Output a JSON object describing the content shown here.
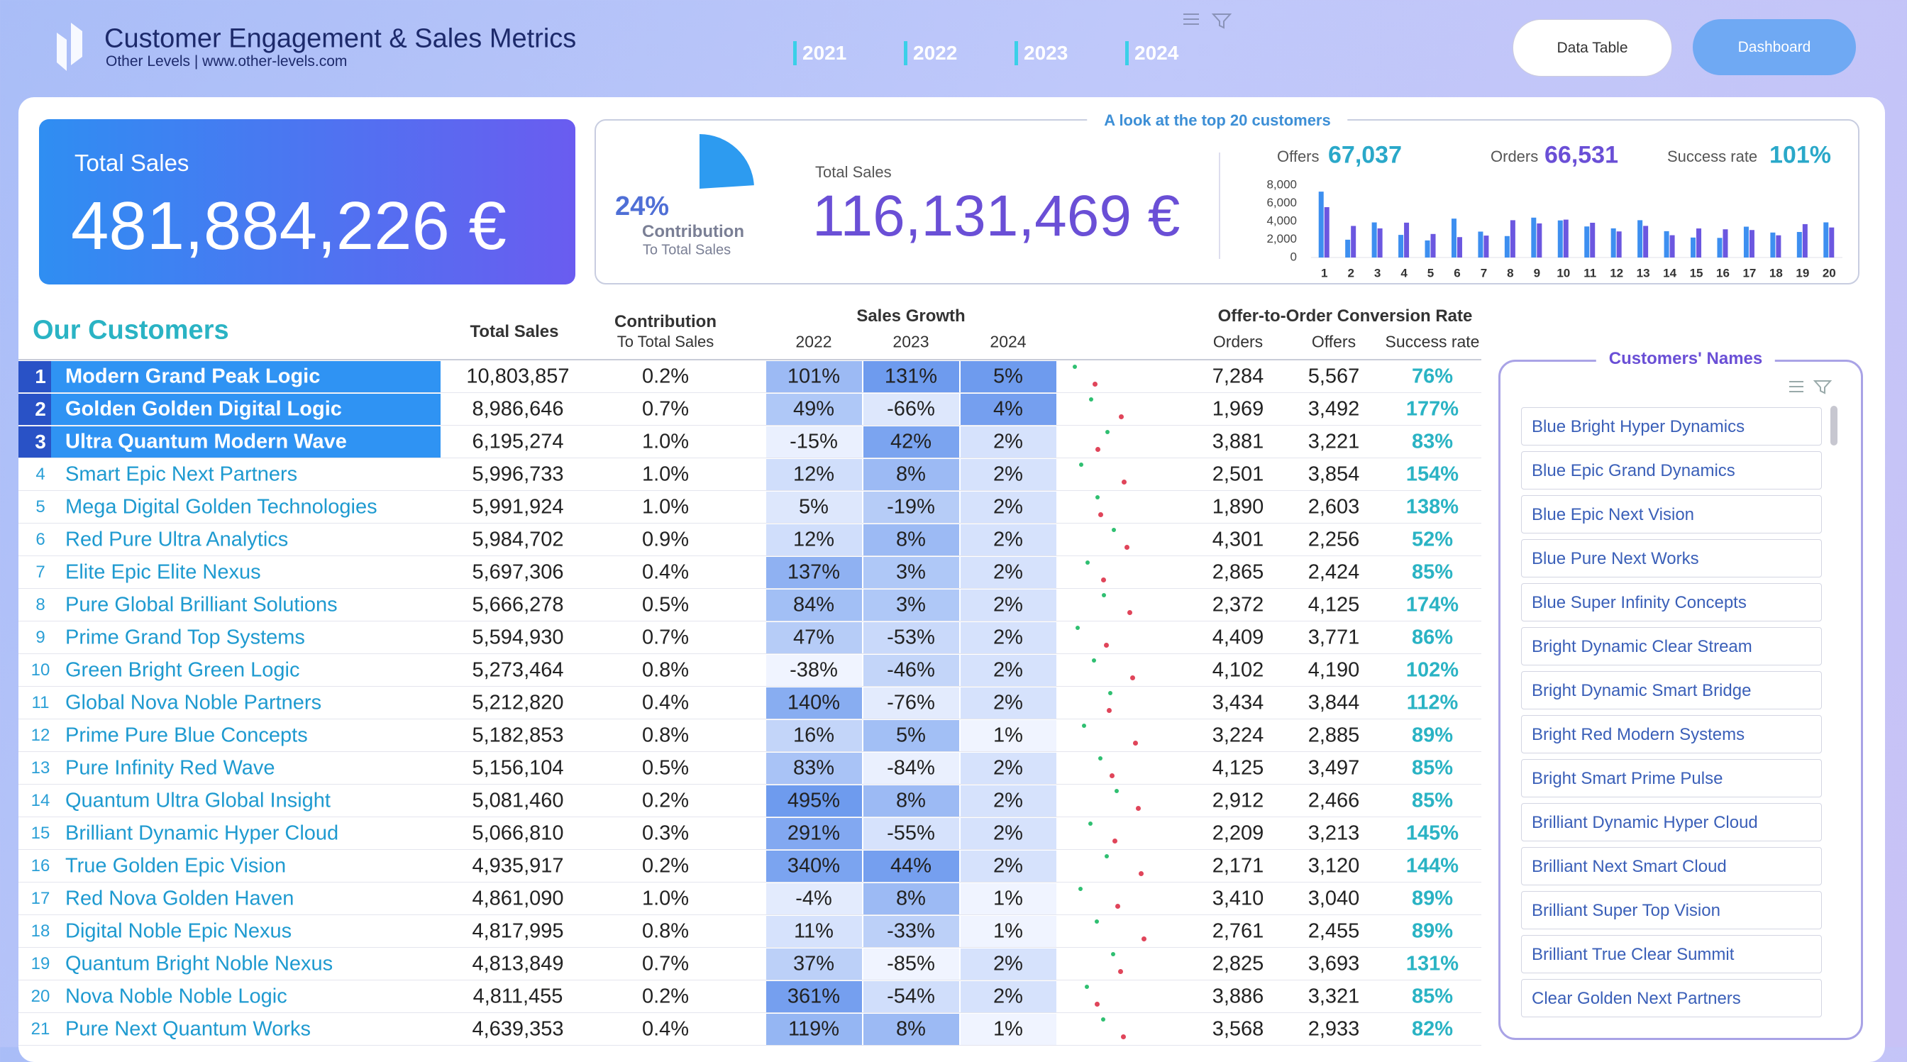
{
  "header": {
    "title": "Customer Engagement & Sales Metrics",
    "subtitle": "Other Levels | www.other-levels.com",
    "years": [
      "2021",
      "2022",
      "2023",
      "2024"
    ],
    "buttons": [
      "Data Table",
      "Dashboard"
    ]
  },
  "total_sales": {
    "label": "Total Sales",
    "value": "481,884,226 €"
  },
  "top20": {
    "heading": "A look at the top 20 customers",
    "contribution_label": "Contribution",
    "contribution_sub": "To Total Sales",
    "total_label": "Total Sales",
    "total_value": "116,131,469 €",
    "offers_label": "Offers",
    "offers": "67,037",
    "orders_label": "Orders",
    "orders": "66,531",
    "success_label": "Success rate",
    "success": "101%"
  },
  "chart_data": [
    {
      "type": "pie",
      "values": [
        24
      ],
      "value_labels": [
        "24%"
      ],
      "color": "#2d9bf0"
    },
    {
      "type": "bar",
      "categories": [
        "1",
        "2",
        "3",
        "4",
        "5",
        "6",
        "7",
        "8",
        "9",
        "10",
        "11",
        "12",
        "13",
        "14",
        "15",
        "16",
        "17",
        "18",
        "19",
        "20"
      ],
      "series": [
        {
          "color": "#3d8ff0",
          "values": [
            7284,
            1969,
            3881,
            2501,
            1890,
            4301,
            2865,
            2372,
            4409,
            4102,
            3434,
            3224,
            4125,
            2912,
            2209,
            2171,
            3410,
            2761,
            2825,
            3886
          ]
        },
        {
          "color": "#6b57e0",
          "values": [
            5567,
            3492,
            3221,
            3854,
            2603,
            2256,
            2424,
            4125,
            3771,
            4190,
            3844,
            2885,
            3497,
            2466,
            3213,
            3120,
            3040,
            2455,
            3693,
            3321
          ]
        }
      ],
      "ylim": [
        0,
        8000
      ],
      "yticks": [
        0,
        {
          "value": 2000,
          "label": "2,000"
        },
        {
          "value": 4000,
          "label": "4,000"
        },
        {
          "value": 6000,
          "label": "6,000"
        },
        {
          "value": 8000,
          "label": "8,000"
        }
      ],
      "grid": false
    }
  ],
  "table": {
    "title": "Our Customers",
    "headers": {
      "total_sales": "Total Sales",
      "contribution": "Contribution",
      "contribution_sub": "To Total Sales",
      "growth": "Sales Growth",
      "growth_years": [
        "2022",
        "2023",
        "2024"
      ],
      "conversion": "Offer-to-Order Conversion Rate",
      "orders": "Orders",
      "offers": "Offers",
      "success": "Success rate"
    },
    "rows": [
      [
        "1",
        "Modern Grand Peak Logic",
        "10,803,857",
        "0.2%",
        "101%",
        "131%",
        "5%",
        "7,284",
        "5,567",
        "76%"
      ],
      [
        "2",
        "Golden Golden Digital Logic",
        "8,986,646",
        "0.7%",
        "49%",
        "-66%",
        "4%",
        "1,969",
        "3,492",
        "177%"
      ],
      [
        "3",
        "Ultra Quantum Modern Wave",
        "6,195,274",
        "1.0%",
        "-15%",
        "42%",
        "2%",
        "3,881",
        "3,221",
        "83%"
      ],
      [
        "4",
        "Smart Epic Next Partners",
        "5,996,733",
        "1.0%",
        "12%",
        "8%",
        "2%",
        "2,501",
        "3,854",
        "154%"
      ],
      [
        "5",
        "Mega Digital Golden Technologies",
        "5,991,924",
        "1.0%",
        "5%",
        "-19%",
        "2%",
        "1,890",
        "2,603",
        "138%"
      ],
      [
        "6",
        "Red Pure Ultra Analytics",
        "5,984,702",
        "0.9%",
        "12%",
        "8%",
        "2%",
        "4,301",
        "2,256",
        "52%"
      ],
      [
        "7",
        "Elite Epic Elite Nexus",
        "5,697,306",
        "0.4%",
        "137%",
        "3%",
        "2%",
        "2,865",
        "2,424",
        "85%"
      ],
      [
        "8",
        "Pure Global Brilliant Solutions",
        "5,666,278",
        "0.5%",
        "84%",
        "3%",
        "2%",
        "2,372",
        "4,125",
        "174%"
      ],
      [
        "9",
        "Prime Grand Top Systems",
        "5,594,930",
        "0.7%",
        "47%",
        "-53%",
        "2%",
        "4,409",
        "3,771",
        "86%"
      ],
      [
        "10",
        "Green Bright Green Logic",
        "5,273,464",
        "0.8%",
        "-38%",
        "-46%",
        "2%",
        "4,102",
        "4,190",
        "102%"
      ],
      [
        "11",
        "Global Nova Noble Partners",
        "5,212,820",
        "0.4%",
        "140%",
        "-76%",
        "2%",
        "3,434",
        "3,844",
        "112%"
      ],
      [
        "12",
        "Prime Pure Blue Concepts",
        "5,182,853",
        "0.8%",
        "16%",
        "5%",
        "1%",
        "3,224",
        "2,885",
        "89%"
      ],
      [
        "13",
        "Pure Infinity Red Wave",
        "5,156,104",
        "0.5%",
        "83%",
        "-84%",
        "2%",
        "4,125",
        "3,497",
        "85%"
      ],
      [
        "14",
        "Quantum Ultra Global Insight",
        "5,081,460",
        "0.2%",
        "495%",
        "8%",
        "2%",
        "2,912",
        "2,466",
        "85%"
      ],
      [
        "15",
        "Brilliant Dynamic Hyper Cloud",
        "5,066,810",
        "0.3%",
        "291%",
        "-55%",
        "2%",
        "2,209",
        "3,213",
        "145%"
      ],
      [
        "16",
        "True Golden Epic Vision",
        "4,935,917",
        "0.2%",
        "340%",
        "44%",
        "2%",
        "2,171",
        "3,120",
        "144%"
      ],
      [
        "17",
        "Red Nova Golden Haven",
        "4,861,090",
        "1.0%",
        "-4%",
        "8%",
        "1%",
        "3,410",
        "3,040",
        "89%"
      ],
      [
        "18",
        "Digital Noble Epic Nexus",
        "4,817,995",
        "0.8%",
        "11%",
        "-33%",
        "1%",
        "2,761",
        "2,455",
        "89%"
      ],
      [
        "19",
        "Quantum Bright Noble Nexus",
        "4,813,849",
        "0.7%",
        "37%",
        "-85%",
        "2%",
        "2,825",
        "3,693",
        "131%"
      ],
      [
        "20",
        "Nova Noble Noble Logic",
        "4,811,455",
        "0.2%",
        "361%",
        "-54%",
        "2%",
        "3,886",
        "3,321",
        "85%"
      ],
      [
        "21",
        "Pure Next Quantum Works",
        "4,639,353",
        "0.4%",
        "119%",
        "8%",
        "1%",
        "3,568",
        "2,933",
        "82%"
      ]
    ]
  },
  "sidebar": {
    "title": "Customers' Names",
    "names": [
      "Blue Bright Hyper Dynamics",
      "Blue Epic Grand Dynamics",
      "Blue Epic Next Vision",
      "Blue Pure Next Works",
      "Blue Super Infinity Concepts",
      "Bright Dynamic Clear Stream",
      "Bright Dynamic Smart Bridge",
      "Bright Red Modern Systems",
      "Bright Smart Prime Pulse",
      "Brilliant Dynamic Hyper Cloud",
      "Brilliant Next Smart Cloud",
      "Brilliant Super Top Vision",
      "Brilliant True Clear Summit",
      "Clear Golden Next Partners"
    ]
  }
}
